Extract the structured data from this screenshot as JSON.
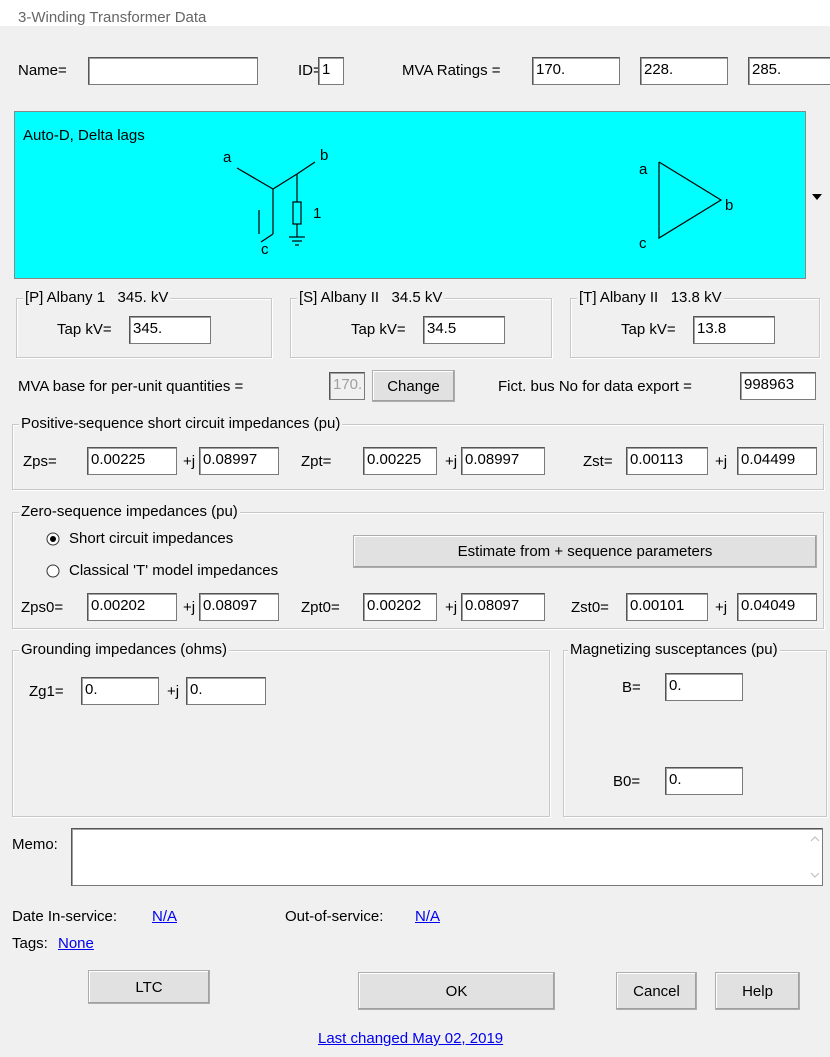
{
  "title": "3-Winding Transformer Data",
  "name": {
    "label": "Name=",
    "value": ""
  },
  "id": {
    "label": "ID=",
    "value": "1"
  },
  "mva_ratings": {
    "label": "MVA Ratings =",
    "values": [
      "170.",
      "228.",
      "285."
    ]
  },
  "diagram": {
    "label": "Auto-D, Delta lags",
    "wye": {
      "a": "a",
      "b": "b",
      "c": "c",
      "ground": "1"
    },
    "delta": {
      "a": "a",
      "b": "b",
      "c": "c"
    }
  },
  "windings": [
    {
      "header": "[P] Albany 1   345. kV",
      "tap_label": "Tap kV=",
      "tap_value": "345."
    },
    {
      "header": "[S] Albany II   34.5 kV",
      "tap_label": "Tap kV=",
      "tap_value": "34.5"
    },
    {
      "header": "[T] Albany II   13.8 kV",
      "tap_label": "Tap kV=",
      "tap_value": "13.8"
    }
  ],
  "mva_base": {
    "label": "MVA base for per-unit quantities =",
    "value": "170.",
    "button": "Change"
  },
  "fict_bus": {
    "label": "Fict. bus No for data export =",
    "value": "998963"
  },
  "positive_sequence": {
    "title": "Positive-sequence short circuit impedances (pu)",
    "j": "+j",
    "items": [
      {
        "label": "Zps=",
        "r": "0.00225",
        "x": "0.08997"
      },
      {
        "label": "Zpt=",
        "r": "0.00225",
        "x": "0.08997"
      },
      {
        "label": "Zst=",
        "r": "0.00113",
        "x": "0.04499"
      }
    ]
  },
  "zero_sequence": {
    "title": "Zero-sequence impedances (pu)",
    "options": [
      "Short circuit impedances",
      "Classical 'T' model impedances"
    ],
    "button": "Estimate from + sequence parameters",
    "j": "+j",
    "items": [
      {
        "label": "Zps0=",
        "r": "0.00202",
        "x": "0.08097"
      },
      {
        "label": "Zpt0=",
        "r": "0.00202",
        "x": "0.08097"
      },
      {
        "label": "Zst0=",
        "r": "0.00101",
        "x": "0.04049"
      }
    ]
  },
  "grounding": {
    "title": "Grounding impedances (ohms)",
    "label": "Zg1=",
    "r": "0.",
    "j": "+j",
    "x": "0."
  },
  "magnetizing": {
    "title": "Magnetizing susceptances (pu)",
    "b_label": "B=",
    "b": "0.",
    "b0_label": "B0=",
    "b0": "0."
  },
  "memo": {
    "label": "Memo:",
    "value": ""
  },
  "dates": {
    "in_label": "Date In-service:",
    "in_value": "N/A",
    "out_label": "Out-of-service:",
    "out_value": "N/A"
  },
  "tags": {
    "label": "Tags:",
    "value": "None"
  },
  "buttons": {
    "ltc": "LTC",
    "ok": "OK",
    "cancel": "Cancel",
    "help": "Help"
  },
  "last_changed": "Last changed May 02, 2019"
}
